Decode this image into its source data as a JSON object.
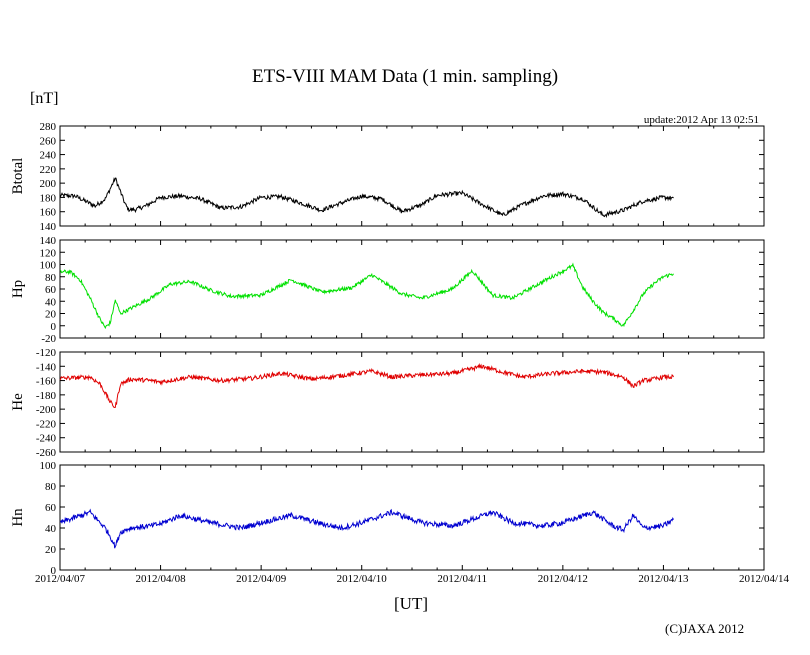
{
  "title": "ETS-VIII MAM Data (1 min. sampling)",
  "y_unit": "[nT]",
  "update": "update:2012 Apr 13 02:51",
  "x_unit": "[UT]",
  "copyright": "(C)JAXA 2012",
  "chart_data": [
    {
      "type": "line",
      "ylabel": "Btotal",
      "ylim": [
        140,
        280
      ],
      "yticks": [
        280,
        260,
        240,
        220,
        200,
        180,
        160,
        140
      ],
      "series": [
        {
          "color": "#000000",
          "x": [
            0,
            0.15,
            0.25,
            0.35,
            0.45,
            0.55,
            0.65,
            0.68,
            0.75,
            0.85,
            1.0,
            1.2,
            1.4,
            1.6,
            1.8,
            2.0,
            2.2,
            2.4,
            2.6,
            2.75,
            3.0,
            3.2,
            3.4,
            3.6,
            3.75,
            4.0,
            4.2,
            4.4,
            4.6,
            4.8,
            5.0,
            5.2,
            5.4,
            5.6,
            5.8,
            6.0,
            6.1
          ],
          "y": [
            183,
            182,
            175,
            168,
            178,
            207,
            170,
            163,
            163,
            168,
            180,
            182,
            178,
            165,
            167,
            180,
            181,
            172,
            162,
            170,
            182,
            178,
            160,
            170,
            183,
            186,
            170,
            155,
            170,
            182,
            185,
            178,
            155,
            162,
            175,
            180,
            179
          ]
        }
      ],
      "noise": 3
    },
    {
      "type": "line",
      "ylabel": "Hp",
      "ylim": [
        -20,
        140
      ],
      "yticks": [
        140,
        120,
        100,
        80,
        60,
        40,
        20,
        0,
        -20
      ],
      "series": [
        {
          "color": "#00e000",
          "x": [
            0,
            0.1,
            0.2,
            0.3,
            0.4,
            0.45,
            0.5,
            0.55,
            0.6,
            0.7,
            0.9,
            1.1,
            1.3,
            1.5,
            1.7,
            2.0,
            2.3,
            2.6,
            2.9,
            3.1,
            3.4,
            3.6,
            3.9,
            4.1,
            4.3,
            4.5,
            4.8,
            5.1,
            5.2,
            5.3,
            5.4,
            5.5,
            5.6,
            5.7,
            5.8,
            5.9,
            6.0,
            6.1
          ],
          "y": [
            88,
            88,
            75,
            45,
            10,
            -3,
            5,
            42,
            20,
            28,
            45,
            68,
            72,
            58,
            48,
            50,
            75,
            55,
            62,
            83,
            52,
            45,
            60,
            90,
            50,
            45,
            72,
            98,
            62,
            40,
            22,
            12,
            0,
            25,
            52,
            68,
            80,
            85
          ]
        }
      ],
      "noise": 3
    },
    {
      "type": "line",
      "ylabel": "He",
      "ylim": [
        -260,
        -120
      ],
      "yticks": [
        -120,
        -140,
        -160,
        -180,
        -200,
        -220,
        -240,
        -260
      ],
      "series": [
        {
          "color": "#e00000",
          "x": [
            0,
            0.15,
            0.3,
            0.4,
            0.5,
            0.55,
            0.6,
            0.7,
            0.9,
            1.0,
            1.3,
            1.6,
            1.9,
            2.2,
            2.5,
            2.8,
            3.1,
            3.3,
            3.6,
            3.9,
            4.2,
            4.4,
            4.6,
            4.9,
            5.2,
            5.4,
            5.6,
            5.7,
            5.8,
            5.9,
            6.0,
            6.1
          ],
          "y": [
            -157,
            -156,
            -155,
            -165,
            -190,
            -198,
            -165,
            -158,
            -160,
            -162,
            -155,
            -160,
            -157,
            -150,
            -158,
            -153,
            -147,
            -155,
            -152,
            -150,
            -140,
            -148,
            -155,
            -150,
            -147,
            -148,
            -155,
            -168,
            -160,
            -158,
            -155,
            -155
          ]
        }
      ],
      "noise": 3
    },
    {
      "type": "line",
      "ylabel": "Hn",
      "ylim": [
        0,
        100
      ],
      "yticks": [
        100,
        80,
        60,
        40,
        20,
        0
      ],
      "series": [
        {
          "color": "#0000d0",
          "x": [
            0,
            0.15,
            0.3,
            0.45,
            0.5,
            0.55,
            0.6,
            0.7,
            0.9,
            1.0,
            1.2,
            1.5,
            1.8,
            2.0,
            2.3,
            2.6,
            2.8,
            3.0,
            3.3,
            3.6,
            3.9,
            4.0,
            4.3,
            4.5,
            4.8,
            5.0,
            5.3,
            5.5,
            5.6,
            5.7,
            5.8,
            6.0,
            6.1
          ],
          "y": [
            45,
            50,
            55,
            40,
            32,
            22,
            36,
            40,
            42,
            44,
            52,
            45,
            40,
            45,
            52,
            44,
            40,
            45,
            55,
            45,
            42,
            45,
            55,
            45,
            42,
            45,
            55,
            42,
            38,
            52,
            40,
            42,
            48
          ]
        }
      ],
      "noise": 2.5
    }
  ],
  "xaxis": {
    "labels": [
      "2012/04/07",
      "2012/04/08",
      "2012/04/09",
      "2012/04/10",
      "2012/04/11",
      "2012/04/12",
      "2012/04/13",
      "2012/04/14"
    ]
  }
}
